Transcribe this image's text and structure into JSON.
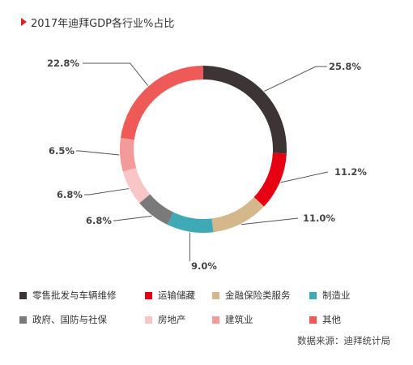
{
  "chart_data": {
    "type": "pie",
    "title": "2017年迪拜GDP各行业%占比",
    "categories": [
      "零售批发与车辆维修",
      "运输储藏",
      "金融保险类服务",
      "制造业",
      "政府、国防与社保",
      "房地产",
      "建筑业",
      "其他"
    ],
    "values": [
      25.8,
      11.2,
      11.0,
      9.0,
      6.8,
      6.8,
      6.5,
      22.8
    ],
    "value_labels": [
      "25.8%",
      "11.2%",
      "11.0%",
      "9.0%",
      "6.8%",
      "6.8%",
      "6.5%",
      "22.8%"
    ],
    "colors": [
      "#3d3435",
      "#e60012",
      "#d4b88c",
      "#3fa9b5",
      "#7a7a7a",
      "#f8c6c6",
      "#f39a9a",
      "#ee5a58"
    ],
    "legend_position": "bottom"
  },
  "source_note": "数据来源：迪拜统计局"
}
